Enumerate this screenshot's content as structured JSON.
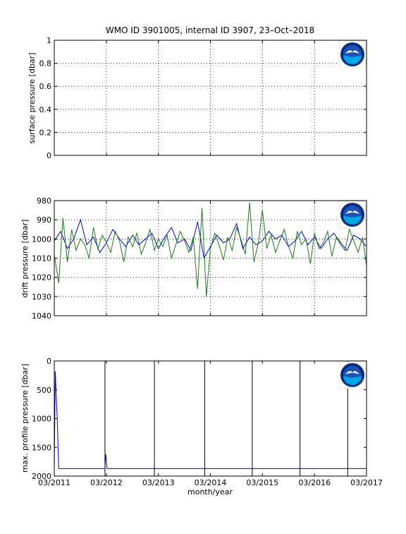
{
  "title": "WMO ID 3901005, internal ID 3907, 23–Oct–2018",
  "xlabel": "month/year",
  "x_ticks": [
    "03/2011",
    "03/2012",
    "03/2013",
    "03/2014",
    "03/2015",
    "03/2016",
    "03/2017"
  ],
  "logo": {
    "name": "noaa-logo",
    "text": "NOAA",
    "colors": {
      "outer": "#ffffff",
      "ring": "#0a2a7a",
      "sky": "#1c53b8",
      "sea": "#00a6e6",
      "bird": "#ffffff"
    }
  },
  "colors": {
    "blue": "#0000cc",
    "green": "#1a7a1a",
    "black": "#000000",
    "grid": "#000000"
  },
  "chart_data": [
    {
      "type": "line",
      "ylabel": "surface pressure [dbar]",
      "ylim": [
        0,
        1
      ],
      "y_ticks": [
        "0",
        "0.2",
        "0.4",
        "0.6",
        "0.8",
        "1"
      ],
      "xlim": [
        "2011-03",
        "2017-03"
      ],
      "grid": true,
      "series": []
    },
    {
      "type": "line",
      "ylabel": "drift pressure [dbar]",
      "ylim": [
        980,
        1040
      ],
      "y_reversed": true,
      "y_ticks": [
        "980",
        "990",
        "1000",
        "1010",
        "1020",
        "1030",
        "1040"
      ],
      "xlim": [
        "2011-03",
        "2017-03"
      ],
      "grid": true,
      "series": [
        {
          "color": "#0000cc",
          "x": [
            "2011-03-01",
            "2011-04-15",
            "2011-06-01",
            "2011-07-15",
            "2011-09-01",
            "2011-10-15",
            "2011-12-01",
            "2012-01-15",
            "2012-03-01",
            "2012-04-15",
            "2012-06-01",
            "2012-07-15",
            "2012-09-01",
            "2012-10-15",
            "2012-12-01",
            "2013-01-15",
            "2013-03-01",
            "2013-04-15",
            "2013-06-01",
            "2013-07-15",
            "2013-09-01",
            "2013-10-15",
            "2013-12-01",
            "2014-01-15",
            "2014-03-01",
            "2014-04-15",
            "2014-06-01",
            "2014-07-15",
            "2014-09-01",
            "2014-10-15",
            "2014-12-01",
            "2015-01-15",
            "2015-03-01",
            "2015-04-15",
            "2015-06-01",
            "2015-07-15",
            "2015-09-01",
            "2015-10-15",
            "2015-12-01",
            "2016-01-15",
            "2016-03-01",
            "2016-04-15",
            "2016-06-01",
            "2016-07-15",
            "2016-09-01",
            "2016-10-15",
            "2016-12-01",
            "2017-01-15",
            "2017-03-01"
          ],
          "y": [
            1001,
            996,
            1005,
            1000,
            990,
            1003,
            999,
            1007,
            1002,
            995,
            1000,
            1004,
            998,
            1003,
            1000,
            997,
            1005,
            999,
            994,
            1002,
            1000,
            1006,
            991,
            1010,
            1004,
            998,
            1002,
            1000,
            992,
            1005,
            999,
            1003,
            1001,
            996,
            1000,
            998,
            1004,
            1001,
            996,
            1003,
            999,
            1005,
            1000,
            997,
            1002,
            1006,
            998,
            1000,
            1004
          ]
        },
        {
          "color": "#1a7a1a",
          "x": [
            "2011-03-01",
            "2011-04-01",
            "2011-05-01",
            "2011-06-01",
            "2011-07-01",
            "2011-08-01",
            "2011-09-01",
            "2011-10-01",
            "2011-11-01",
            "2011-12-01",
            "2012-01-01",
            "2012-02-01",
            "2012-03-01",
            "2012-04-01",
            "2012-05-01",
            "2012-06-01",
            "2012-07-01",
            "2012-08-01",
            "2012-09-01",
            "2012-10-01",
            "2012-11-01",
            "2012-12-01",
            "2013-01-01",
            "2013-02-01",
            "2013-03-01",
            "2013-04-01",
            "2013-05-01",
            "2013-06-01",
            "2013-07-01",
            "2013-08-01",
            "2013-09-01",
            "2013-10-01",
            "2013-11-01",
            "2013-12-01",
            "2014-01-01",
            "2014-02-01",
            "2014-03-01",
            "2014-04-01",
            "2014-05-01",
            "2014-06-01",
            "2014-07-01",
            "2014-08-01",
            "2014-09-01",
            "2014-10-01",
            "2014-11-01",
            "2014-12-01",
            "2015-01-01",
            "2015-02-01",
            "2015-03-01",
            "2015-04-01",
            "2015-05-01",
            "2015-06-01",
            "2015-07-01",
            "2015-08-01",
            "2015-09-01",
            "2015-10-01",
            "2015-11-01",
            "2015-12-01",
            "2016-01-01",
            "2016-02-01",
            "2016-03-01",
            "2016-04-01",
            "2016-05-01",
            "2016-06-01",
            "2016-07-01",
            "2016-08-01",
            "2016-09-01",
            "2016-10-01",
            "2016-11-01",
            "2016-12-01",
            "2017-01-01",
            "2017-02-01",
            "2017-03-01"
          ],
          "y": [
            1008,
            1023,
            989,
            1012,
            995,
            1006,
            1000,
            1003,
            1010,
            994,
            1005,
            998,
            1002,
            1007,
            996,
            1001,
            1012,
            999,
            1004,
            997,
            1008,
            1002,
            995,
            1006,
            1000,
            1004,
            998,
            1010,
            1003,
            996,
            1001,
            1007,
            999,
            1026,
            984,
            1030,
            1005,
            997,
            1003,
            1011,
            999,
            1006,
            994,
            1000,
            1008,
            981,
            1012,
            1002,
            985,
            1005,
            998,
            1007,
            1001,
            995,
            1004,
            1010,
            996,
            1003,
            1000,
            1013,
            997,
            1005,
            1002,
            996,
            1009,
            999,
            1003,
            1006,
            995,
            1001,
            1007,
            999,
            1014
          ]
        }
      ]
    },
    {
      "type": "line",
      "ylabel": "max. profile pressure [dbar]",
      "ylim": [
        0,
        2000
      ],
      "y_reversed": true,
      "y_ticks": [
        "0",
        "500",
        "1000",
        "1500",
        "2000"
      ],
      "xlim": [
        "2011-03",
        "2017-03"
      ],
      "grid": false,
      "vertical_lines": [
        "2012-02-20",
        "2013-02-01",
        "2014-01-20",
        "2014-12-20",
        "2015-11-20",
        "2016-10-20"
      ],
      "series": [
        {
          "color": "#0000cc",
          "x": [
            "2011-03-01",
            "2011-03-08",
            "2011-03-15",
            "2011-03-22",
            "2011-04-01",
            "2012-02-20",
            "2012-02-25",
            "2012-03-01",
            "2012-03-05",
            "2017-03-01"
          ],
          "y": [
            1870,
            180,
            600,
            1000,
            1870,
            1870,
            1620,
            1750,
            1870,
            1870
          ]
        }
      ]
    }
  ]
}
